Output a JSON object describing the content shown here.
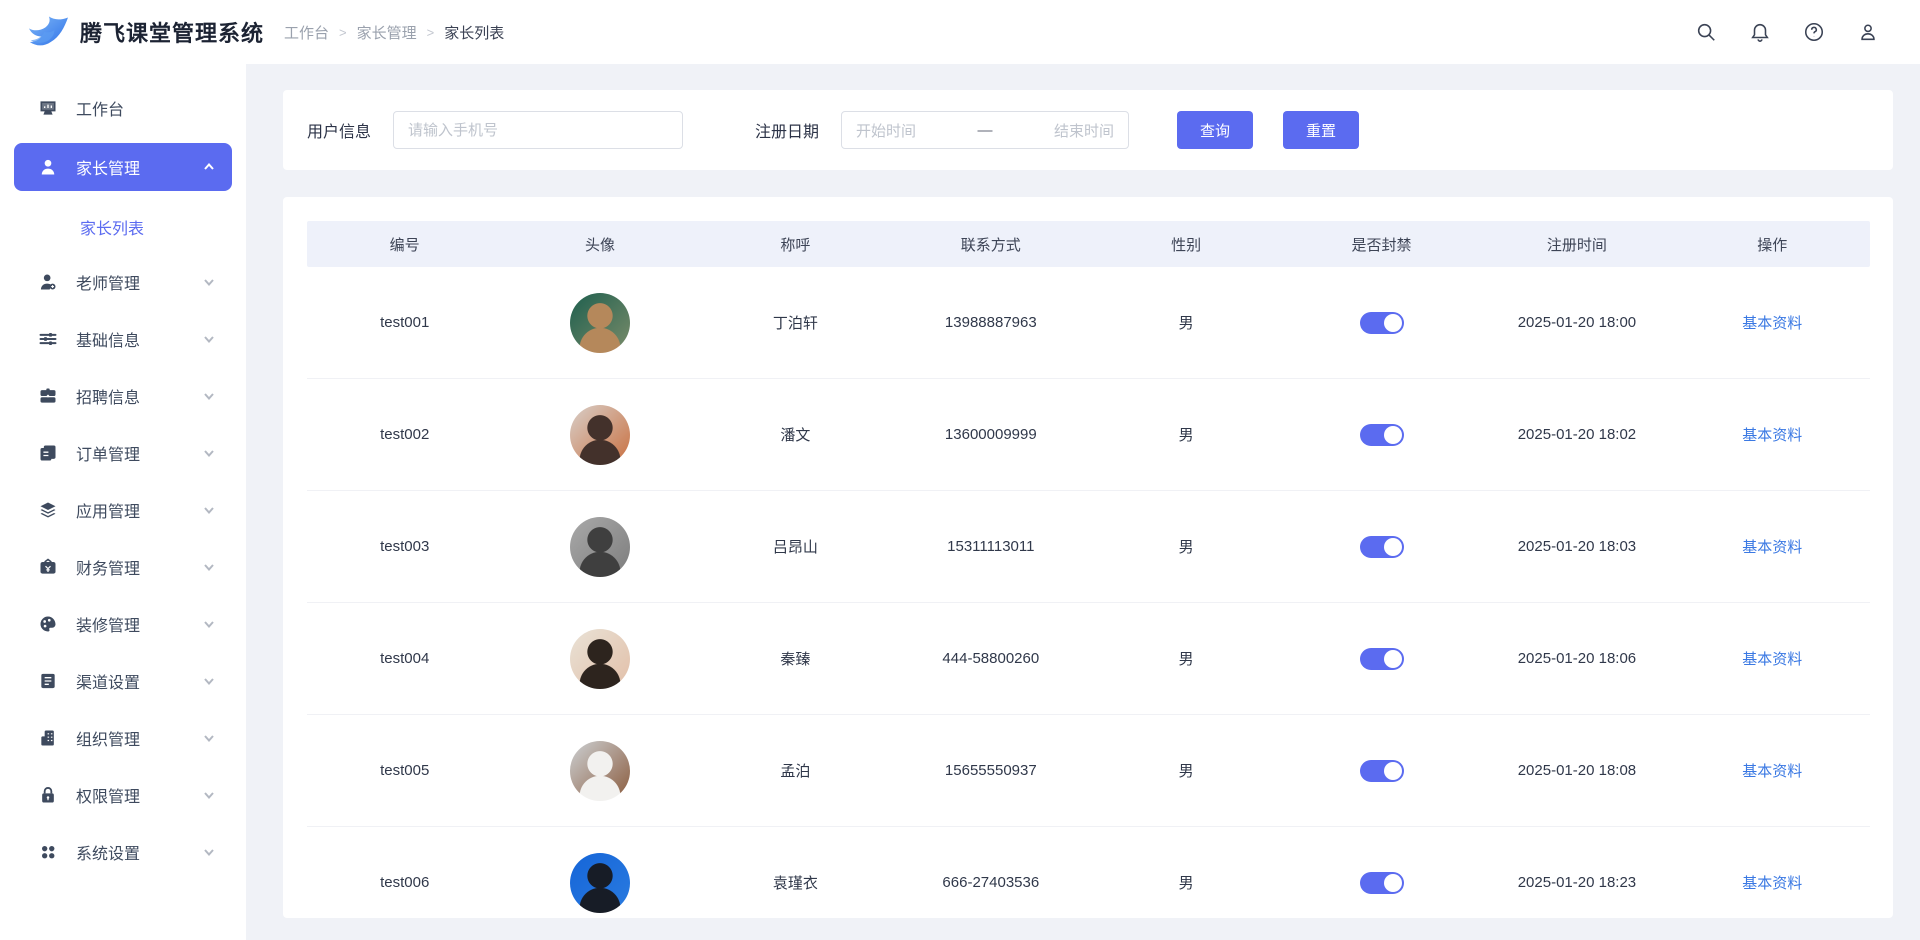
{
  "app": {
    "title": "腾飞课堂管理系统"
  },
  "header": {
    "breadcrumb": [
      "工作台",
      "家长管理",
      "家长列表"
    ],
    "icons": [
      {
        "name": "search-icon"
      },
      {
        "name": "bell-icon"
      },
      {
        "name": "help-icon"
      },
      {
        "name": "user-icon"
      }
    ]
  },
  "sidebar": {
    "items": [
      {
        "label": "工作台",
        "icon": "monitor-icon",
        "active": false,
        "chevron": false
      },
      {
        "label": "家长管理",
        "icon": "parent-icon",
        "active": true,
        "chevron": true,
        "children": [
          {
            "label": "家长列表",
            "active": true
          }
        ]
      },
      {
        "label": "老师管理",
        "icon": "teacher-icon",
        "active": false,
        "chevron": true
      },
      {
        "label": "基础信息",
        "icon": "sliders-icon",
        "active": false,
        "chevron": true
      },
      {
        "label": "招聘信息",
        "icon": "briefcase-icon",
        "active": false,
        "chevron": true
      },
      {
        "label": "订单管理",
        "icon": "order-icon",
        "active": false,
        "chevron": true
      },
      {
        "label": "应用管理",
        "icon": "layers-icon",
        "active": false,
        "chevron": true
      },
      {
        "label": "财务管理",
        "icon": "finance-icon",
        "active": false,
        "chevron": true
      },
      {
        "label": "装修管理",
        "icon": "palette-icon",
        "active": false,
        "chevron": true
      },
      {
        "label": "渠道设置",
        "icon": "channel-icon",
        "active": false,
        "chevron": true
      },
      {
        "label": "组织管理",
        "icon": "org-icon",
        "active": false,
        "chevron": true
      },
      {
        "label": "权限管理",
        "icon": "lock-icon",
        "active": false,
        "chevron": true
      },
      {
        "label": "系统设置",
        "icon": "grid-icon",
        "active": false,
        "chevron": true
      }
    ]
  },
  "filters": {
    "user_label": "用户信息",
    "phone_placeholder": "请输入手机号",
    "date_label": "注册日期",
    "date_start_placeholder": "开始时间",
    "date_separator": "—",
    "date_end_placeholder": "结束时间",
    "search_button": "查询",
    "reset_button": "重置"
  },
  "table": {
    "columns": [
      "编号",
      "头像",
      "称呼",
      "联系方式",
      "性别",
      "是否封禁",
      "注册时间",
      "操作"
    ],
    "action_label": "基本资料",
    "rows": [
      {
        "id": "test001",
        "name": "丁泊轩",
        "phone": "13988887963",
        "gender": "男",
        "banned": true,
        "registered": "2025-01-20 18:00",
        "avatar": {
          "c1": "#1e5f4e",
          "c2": "#7a8c6a",
          "c3": "#b5885b"
        }
      },
      {
        "id": "test002",
        "name": "潘文",
        "phone": "13600009999",
        "gender": "男",
        "banned": true,
        "registered": "2025-01-20 18:02",
        "avatar": {
          "c1": "#d8cfc9",
          "c2": "#c96f3f",
          "c3": "#43312b"
        }
      },
      {
        "id": "test003",
        "name": "吕昂山",
        "phone": "15311113011",
        "gender": "男",
        "banned": true,
        "registered": "2025-01-20 18:03",
        "avatar": {
          "c1": "#a9a9a9",
          "c2": "#7d7d7d",
          "c3": "#3f3f3f"
        }
      },
      {
        "id": "test004",
        "name": "秦臻",
        "phone": "444-58800260",
        "gender": "男",
        "banned": true,
        "registered": "2025-01-20 18:06",
        "avatar": {
          "c1": "#e9e2d6",
          "c2": "#e2bfa8",
          "c3": "#2d241e"
        }
      },
      {
        "id": "test005",
        "name": "孟泊",
        "phone": "15655550937",
        "gender": "男",
        "banned": true,
        "registered": "2025-01-20 18:08",
        "avatar": {
          "c1": "#ccd0d3",
          "c2": "#8a5a3c",
          "c3": "#f2f1ef"
        }
      },
      {
        "id": "test006",
        "name": "袁瑾衣",
        "phone": "666-27403536",
        "gender": "男",
        "banned": true,
        "registered": "2025-01-20 18:23",
        "avatar": {
          "c1": "#1565d8",
          "c2": "#2a7be0",
          "c3": "#171c26"
        }
      }
    ]
  },
  "colors": {
    "accent": "#5b6bf0",
    "link": "#3b79e3",
    "table_header_bg": "#eef1fa",
    "toggle_on": "#5b6bf0",
    "content_bg": "#f0f2f7"
  }
}
